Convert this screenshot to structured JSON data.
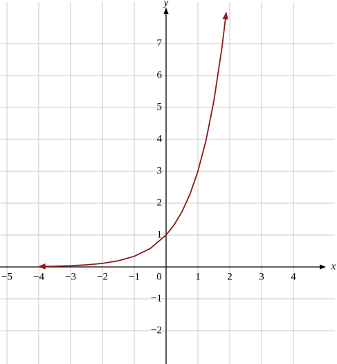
{
  "chart_data": {
    "type": "line",
    "x_label": "x",
    "y_label": "y",
    "x": [
      -4,
      -3.5,
      -3,
      -2.5,
      -2,
      -1.5,
      -1,
      -0.5,
      0,
      0.25,
      0.5,
      0.75,
      1,
      1.25,
      1.5,
      1.75,
      1.89
    ],
    "series": [
      {
        "color": "#8b1a1a",
        "values": [
          0.012,
          0.021,
          0.037,
          0.064,
          0.111,
          0.192,
          0.333,
          0.577,
          1,
          1.316,
          1.732,
          2.28,
          3,
          3.948,
          5.196,
          6.839,
          7.975
        ]
      }
    ],
    "xlim": [
      -5.2,
      5.3
    ],
    "ylim": [
      -3.05,
      8.3
    ],
    "xticks": [
      {
        "value": -5,
        "label": "−5"
      },
      {
        "value": -4,
        "label": "−4"
      },
      {
        "value": -3,
        "label": "−3"
      },
      {
        "value": -2,
        "label": "−2"
      },
      {
        "value": -1,
        "label": "−1"
      },
      0,
      1,
      2,
      3,
      4
    ],
    "yticks": [
      {
        "value": -2,
        "label": "−2"
      },
      {
        "value": -1,
        "label": "−1"
      },
      1,
      2,
      3,
      4,
      5,
      6,
      7
    ],
    "grid": true
  }
}
